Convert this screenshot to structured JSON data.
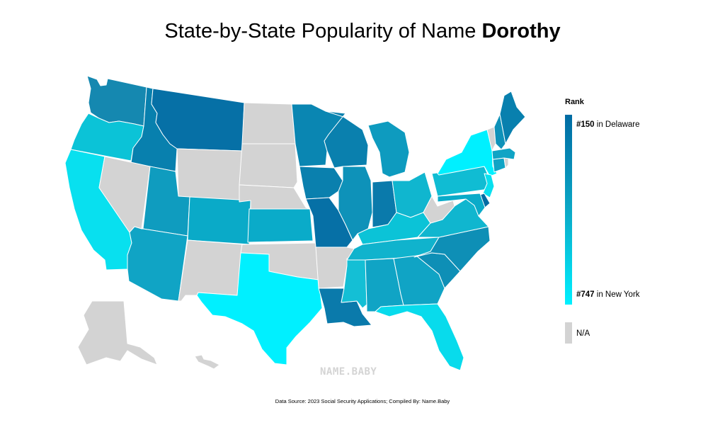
{
  "title": {
    "prefix": "State-by-State Popularity of Name ",
    "name": "Dorothy"
  },
  "legend": {
    "title": "Rank",
    "top_rank": "#150",
    "top_state_text": " in Delaware",
    "bottom_rank": "#747",
    "bottom_state_text": " in New York",
    "na_label": "N/A",
    "color_high": "#006ba3",
    "color_mid": "#0aa8c6",
    "color_low": "#00f0ff",
    "color_na": "#d3d3d3"
  },
  "watermark": "NAME.BABY",
  "source": "Data Source: 2023 Social Security Applications; Compiled By: Name.Baby",
  "states": {
    "WA": "#1588b0",
    "OR": "#0bc3d7",
    "CA": "#08e0ef",
    "ID": "#0880ae",
    "MT": "#0670a6",
    "NV": "na",
    "UT": "#0f9cbf",
    "AZ": "#10a4c5",
    "WY": "na",
    "CO": "#0aaac8",
    "NM": "na",
    "ND": "na",
    "SD": "na",
    "NE": "na",
    "KS": "#0aabc9",
    "OK": "na",
    "TX": "#00f0ff",
    "MN": "#0a86b2",
    "IA": "#0a80ae",
    "MO": "#0670a6",
    "AR": "na",
    "LA": "#0a7aab",
    "WI": "#0a80ae",
    "IL": "#0e92b9",
    "MS": "#14bfd5",
    "MI": "#0e9bbf",
    "IN": "#0a7aab",
    "KY": "#0bc3d7",
    "TN": "#10b3cd",
    "AL": "#10a4c5",
    "OH": "#10b6cf",
    "GA": "#10a4c5",
    "FL": "#08dbec",
    "SC": "#0e8fb6",
    "NC": "#0e8fb6",
    "VA": "#10b6cf",
    "WV": "na",
    "PA": "#10bcd3",
    "NY": "#00f0ff",
    "VT": "na",
    "NH": "#0e92b9",
    "ME": "#0880ae",
    "MA": "#10a4c5",
    "RI": "na",
    "CT": "#10a4c5",
    "NJ": "#08e0ef",
    "DE": "#006ba3",
    "MD": "#0aabc9",
    "AK": "na",
    "HI": "na"
  }
}
